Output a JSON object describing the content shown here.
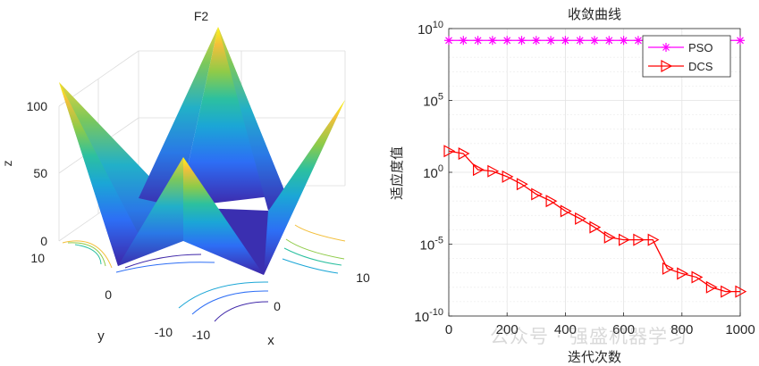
{
  "chart_data": [
    {
      "type": "surface",
      "title": "F2",
      "xlabel": "x",
      "ylabel": "y",
      "zlabel": "z",
      "x_ticks": [
        "-10",
        "0",
        "10"
      ],
      "y_ticks": [
        "-10",
        "0",
        "10"
      ],
      "z_ticks": [
        "0",
        "50",
        "100"
      ],
      "xlim": [
        -10,
        10
      ],
      "ylim": [
        -10,
        10
      ],
      "zlim": [
        0,
        120
      ],
      "colormap": [
        "#3e26a8",
        "#2d6ef5",
        "#1ba6d6",
        "#2cc0a0",
        "#8fcb48",
        "#f3bf3b",
        "#f9fb15"
      ],
      "grid": true,
      "contour_below": true
    },
    {
      "type": "line",
      "title": "收敛曲线",
      "xlabel": "迭代次数",
      "ylabel": "适应度值",
      "yscale": "log",
      "xlim": [
        0,
        1000
      ],
      "ylim": [
        1e-10,
        10000000000.0
      ],
      "x_ticks": [
        "0",
        "200",
        "400",
        "600",
        "800",
        "1000"
      ],
      "y_ticks": [
        {
          "base": "10",
          "exp": "10"
        },
        {
          "base": "10",
          "exp": "5"
        },
        {
          "base": "10",
          "exp": "0"
        },
        {
          "base": "10",
          "exp": "-5"
        },
        {
          "base": "10",
          "exp": "-10"
        }
      ],
      "grid": true,
      "legend_position": "top-right",
      "series": [
        {
          "name": "PSO",
          "color": "#ff00ff",
          "marker": "asterisk",
          "x": [
            0,
            50,
            100,
            150,
            200,
            250,
            300,
            350,
            400,
            450,
            500,
            550,
            600,
            650,
            700,
            750,
            800,
            850,
            900,
            950,
            1000
          ],
          "y": [
            1500000000.0,
            1500000000.0,
            1500000000.0,
            1500000000.0,
            1500000000.0,
            1500000000.0,
            1500000000.0,
            1500000000.0,
            1500000000.0,
            1500000000.0,
            1500000000.0,
            1500000000.0,
            1500000000.0,
            1500000000.0,
            1500000000.0,
            1500000000.0,
            1500000000.0,
            1500000000.0,
            1500000000.0,
            1500000000.0,
            1500000000.0
          ]
        },
        {
          "name": "DCS",
          "color": "#ff0000",
          "marker": "triangle-right",
          "x": [
            0,
            50,
            100,
            150,
            200,
            250,
            300,
            350,
            400,
            450,
            500,
            550,
            600,
            650,
            700,
            750,
            800,
            850,
            900,
            950,
            1000
          ],
          "y": [
            30,
            20,
            1.5,
            1.2,
            0.5,
            0.15,
            0.03,
            0.01,
            0.002,
            0.0006,
            0.00015,
            3e-05,
            2e-05,
            2e-05,
            2e-05,
            2e-07,
            9e-08,
            5e-08,
            1e-08,
            5e-09,
            5e-09
          ]
        }
      ]
    }
  ],
  "watermark": "公众号 · 强盛机器学习"
}
